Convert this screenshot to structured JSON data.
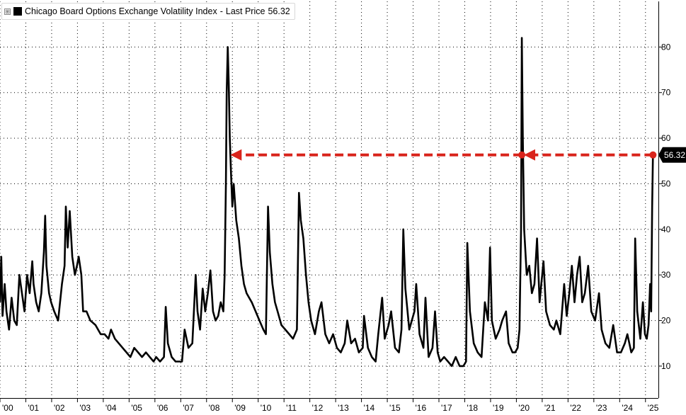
{
  "legend": {
    "toggle_glyph": "⊞",
    "swatch_color": "#000000",
    "series_title": "Chicago Board Options Exchange Volatility Index",
    "separator": "-",
    "last_price_label": "Last Price",
    "last_price_value": "56.32"
  },
  "chart_data": {
    "type": "line",
    "title": "",
    "xlabel": "",
    "ylabel": "",
    "ylim": [
      3,
      90
    ],
    "xlim": [
      2000.0,
      2025.5
    ],
    "y_ticks": [
      10,
      20,
      30,
      40,
      50,
      60,
      70,
      80
    ],
    "x_tick_labels": [
      "'00",
      "'01",
      "'02",
      "'03",
      "'04",
      "'05",
      "'06",
      "'07",
      "'08",
      "'09",
      "'10",
      "'11",
      "'12",
      "'13",
      "'14",
      "'15",
      "'16",
      "'17",
      "'18",
      "'19",
      "'20",
      "'21",
      "'22",
      "'23",
      "'24",
      "'25"
    ],
    "grid": true,
    "axis_side": "right",
    "line_color": "#000000",
    "last_value": 56.32,
    "last_value_label": "56.32",
    "series": [
      {
        "values": [
          [
            2000.0,
            24
          ],
          [
            2000.05,
            34
          ],
          [
            2000.1,
            21
          ],
          [
            2000.18,
            28
          ],
          [
            2000.25,
            22
          ],
          [
            2000.35,
            18
          ],
          [
            2000.45,
            25
          ],
          [
            2000.55,
            20
          ],
          [
            2000.65,
            19
          ],
          [
            2000.75,
            30
          ],
          [
            2000.85,
            26
          ],
          [
            2000.95,
            22
          ],
          [
            2001.05,
            30
          ],
          [
            2001.15,
            26
          ],
          [
            2001.25,
            33
          ],
          [
            2001.3,
            28
          ],
          [
            2001.4,
            24
          ],
          [
            2001.5,
            22
          ],
          [
            2001.6,
            26
          ],
          [
            2001.7,
            35
          ],
          [
            2001.75,
            43
          ],
          [
            2001.8,
            32
          ],
          [
            2001.9,
            26
          ],
          [
            2001.98,
            24
          ],
          [
            2002.1,
            22
          ],
          [
            2002.25,
            20
          ],
          [
            2002.4,
            28
          ],
          [
            2002.5,
            32
          ],
          [
            2002.55,
            45
          ],
          [
            2002.62,
            36
          ],
          [
            2002.7,
            44
          ],
          [
            2002.8,
            34
          ],
          [
            2002.9,
            30
          ],
          [
            2002.98,
            32
          ],
          [
            2003.05,
            34
          ],
          [
            2003.15,
            30
          ],
          [
            2003.22,
            22
          ],
          [
            2003.35,
            22
          ],
          [
            2003.5,
            20
          ],
          [
            2003.7,
            19
          ],
          [
            2003.9,
            17
          ],
          [
            2004.05,
            17
          ],
          [
            2004.2,
            16
          ],
          [
            2004.3,
            18
          ],
          [
            2004.45,
            16
          ],
          [
            2004.6,
            15
          ],
          [
            2004.75,
            14
          ],
          [
            2004.9,
            13
          ],
          [
            2005.05,
            12
          ],
          [
            2005.2,
            14
          ],
          [
            2005.35,
            13
          ],
          [
            2005.5,
            12
          ],
          [
            2005.65,
            13
          ],
          [
            2005.8,
            12
          ],
          [
            2005.95,
            11
          ],
          [
            2006.05,
            12
          ],
          [
            2006.2,
            11
          ],
          [
            2006.35,
            12
          ],
          [
            2006.42,
            23
          ],
          [
            2006.5,
            15
          ],
          [
            2006.65,
            12
          ],
          [
            2006.8,
            11
          ],
          [
            2006.95,
            11
          ],
          [
            2007.05,
            11
          ],
          [
            2007.15,
            18
          ],
          [
            2007.3,
            14
          ],
          [
            2007.45,
            15
          ],
          [
            2007.58,
            30
          ],
          [
            2007.65,
            22
          ],
          [
            2007.75,
            18
          ],
          [
            2007.85,
            27
          ],
          [
            2007.95,
            22
          ],
          [
            2008.05,
            26
          ],
          [
            2008.15,
            31
          ],
          [
            2008.25,
            22
          ],
          [
            2008.35,
            20
          ],
          [
            2008.45,
            21
          ],
          [
            2008.55,
            24
          ],
          [
            2008.65,
            22
          ],
          [
            2008.7,
            30
          ],
          [
            2008.75,
            50
          ],
          [
            2008.78,
            70
          ],
          [
            2008.82,
            80
          ],
          [
            2008.86,
            72
          ],
          [
            2008.9,
            60
          ],
          [
            2008.95,
            52
          ],
          [
            2009.0,
            45
          ],
          [
            2009.05,
            50
          ],
          [
            2009.15,
            42
          ],
          [
            2009.25,
            38
          ],
          [
            2009.35,
            32
          ],
          [
            2009.45,
            28
          ],
          [
            2009.55,
            26
          ],
          [
            2009.65,
            25
          ],
          [
            2009.75,
            24
          ],
          [
            2009.9,
            22
          ],
          [
            2010.05,
            20
          ],
          [
            2010.2,
            18
          ],
          [
            2010.3,
            17
          ],
          [
            2010.38,
            45
          ],
          [
            2010.45,
            35
          ],
          [
            2010.55,
            28
          ],
          [
            2010.65,
            24
          ],
          [
            2010.75,
            22
          ],
          [
            2010.9,
            19
          ],
          [
            2011.05,
            18
          ],
          [
            2011.2,
            17
          ],
          [
            2011.35,
            16
          ],
          [
            2011.5,
            18
          ],
          [
            2011.58,
            48
          ],
          [
            2011.65,
            42
          ],
          [
            2011.75,
            38
          ],
          [
            2011.85,
            30
          ],
          [
            2011.95,
            24
          ],
          [
            2012.05,
            20
          ],
          [
            2012.2,
            17
          ],
          [
            2012.35,
            22
          ],
          [
            2012.45,
            24
          ],
          [
            2012.6,
            17
          ],
          [
            2012.75,
            15
          ],
          [
            2012.9,
            17
          ],
          [
            2013.05,
            14
          ],
          [
            2013.2,
            13
          ],
          [
            2013.35,
            15
          ],
          [
            2013.45,
            20
          ],
          [
            2013.6,
            15
          ],
          [
            2013.75,
            16
          ],
          [
            2013.9,
            13
          ],
          [
            2014.05,
            14
          ],
          [
            2014.1,
            21
          ],
          [
            2014.25,
            14
          ],
          [
            2014.4,
            12
          ],
          [
            2014.55,
            11
          ],
          [
            2014.65,
            17
          ],
          [
            2014.8,
            25
          ],
          [
            2014.9,
            16
          ],
          [
            2015.05,
            19
          ],
          [
            2015.15,
            22
          ],
          [
            2015.3,
            14
          ],
          [
            2015.45,
            13
          ],
          [
            2015.55,
            18
          ],
          [
            2015.62,
            40
          ],
          [
            2015.7,
            27
          ],
          [
            2015.85,
            18
          ],
          [
            2015.95,
            20
          ],
          [
            2016.05,
            22
          ],
          [
            2016.12,
            28
          ],
          [
            2016.25,
            17
          ],
          [
            2016.4,
            14
          ],
          [
            2016.48,
            25
          ],
          [
            2016.6,
            12
          ],
          [
            2016.75,
            14
          ],
          [
            2016.85,
            22
          ],
          [
            2016.95,
            13
          ],
          [
            2017.05,
            11
          ],
          [
            2017.2,
            12
          ],
          [
            2017.35,
            11
          ],
          [
            2017.5,
            10
          ],
          [
            2017.65,
            12
          ],
          [
            2017.8,
            10
          ],
          [
            2017.95,
            10
          ],
          [
            2018.05,
            11
          ],
          [
            2018.1,
            37
          ],
          [
            2018.2,
            22
          ],
          [
            2018.35,
            15
          ],
          [
            2018.5,
            13
          ],
          [
            2018.65,
            12
          ],
          [
            2018.78,
            24
          ],
          [
            2018.9,
            20
          ],
          [
            2018.98,
            36
          ],
          [
            2019.05,
            20
          ],
          [
            2019.2,
            16
          ],
          [
            2019.35,
            18
          ],
          [
            2019.45,
            20
          ],
          [
            2019.6,
            22
          ],
          [
            2019.7,
            15
          ],
          [
            2019.85,
            13
          ],
          [
            2019.95,
            13
          ],
          [
            2020.05,
            14
          ],
          [
            2020.12,
            18
          ],
          [
            2020.18,
            40
          ],
          [
            2020.21,
            82
          ],
          [
            2020.25,
            60
          ],
          [
            2020.3,
            40
          ],
          [
            2020.4,
            30
          ],
          [
            2020.5,
            32
          ],
          [
            2020.6,
            26
          ],
          [
            2020.7,
            28
          ],
          [
            2020.8,
            38
          ],
          [
            2020.9,
            24
          ],
          [
            2021.05,
            33
          ],
          [
            2021.15,
            22
          ],
          [
            2021.3,
            19
          ],
          [
            2021.45,
            18
          ],
          [
            2021.55,
            20
          ],
          [
            2021.7,
            17
          ],
          [
            2021.85,
            28
          ],
          [
            2021.95,
            21
          ],
          [
            2022.05,
            26
          ],
          [
            2022.15,
            32
          ],
          [
            2022.25,
            24
          ],
          [
            2022.35,
            30
          ],
          [
            2022.45,
            34
          ],
          [
            2022.55,
            24
          ],
          [
            2022.65,
            26
          ],
          [
            2022.78,
            32
          ],
          [
            2022.9,
            22
          ],
          [
            2023.05,
            20
          ],
          [
            2023.2,
            26
          ],
          [
            2023.3,
            18
          ],
          [
            2023.45,
            15
          ],
          [
            2023.6,
            14
          ],
          [
            2023.75,
            19
          ],
          [
            2023.9,
            13
          ],
          [
            2024.05,
            13
          ],
          [
            2024.2,
            15
          ],
          [
            2024.3,
            17
          ],
          [
            2024.45,
            13
          ],
          [
            2024.55,
            14
          ],
          [
            2024.6,
            38
          ],
          [
            2024.68,
            22
          ],
          [
            2024.8,
            16
          ],
          [
            2024.9,
            24
          ],
          [
            2024.98,
            17
          ],
          [
            2025.05,
            16
          ],
          [
            2025.12,
            19
          ],
          [
            2025.18,
            28
          ],
          [
            2025.22,
            22
          ],
          [
            2025.26,
            45
          ],
          [
            2025.29,
            56.32
          ]
        ]
      }
    ],
    "annotations": [
      {
        "type": "dashed-arrow",
        "color": "#d9241c",
        "from": [
          2025.29,
          56.32
        ],
        "to": [
          2020.29,
          56.32
        ]
      },
      {
        "type": "dashed-arrow",
        "color": "#d9241c",
        "from": [
          2020.21,
          56.32
        ],
        "to": [
          2008.92,
          56.32
        ]
      }
    ]
  }
}
